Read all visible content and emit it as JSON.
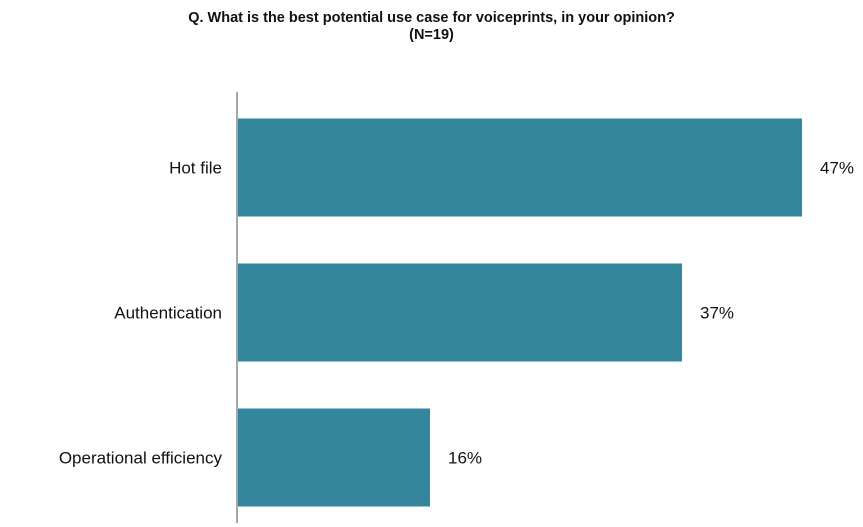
{
  "chart_data": {
    "type": "bar",
    "orientation": "horizontal",
    "title": "Q. What is the best potential use case for voiceprints, in your opinion?",
    "subtitle": "(N=19)",
    "categories": [
      "Hot file",
      "Authentication",
      "Operational efficiency"
    ],
    "values": [
      47,
      37,
      16
    ],
    "value_labels": [
      "47%",
      "37%",
      "16%"
    ],
    "xlabel": "",
    "ylabel": "",
    "xlim": [
      0,
      50
    ],
    "grid": false,
    "legend": "none",
    "colors": {
      "bar": "#33869b",
      "axis": "#888888"
    }
  }
}
